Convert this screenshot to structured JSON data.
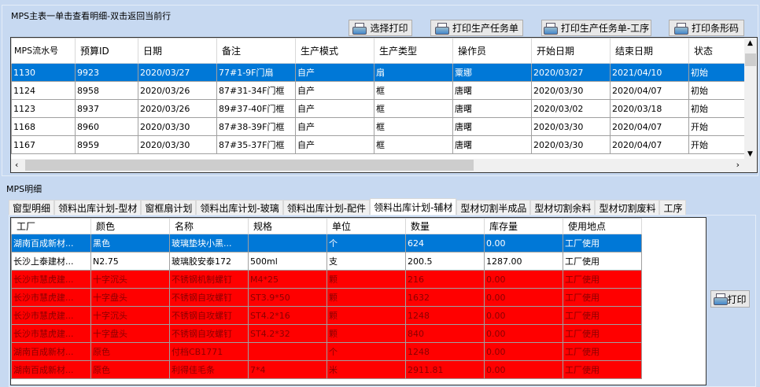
{
  "master": {
    "title": "MPS主表一单击查看明细-双击返回当前行",
    "buttons": [
      "选择打印",
      "打印生产任务单",
      "打印生产任务单-工序",
      "打印条形码"
    ],
    "columns": [
      "MPS流水号",
      "预算ID",
      "日期",
      "备注",
      "生产模式",
      "生产类型",
      "操作员",
      "开始日期",
      "结束日期",
      "状态"
    ],
    "rows": [
      [
        "1130",
        "9923",
        "2020/03/27",
        "77#1-9F门扇",
        "自产",
        "扇",
        "粟娜",
        "2020/03/27",
        "2021/04/10",
        "初始"
      ],
      [
        "1124",
        "8958",
        "2020/03/26",
        "87#31-34F门框",
        "自产",
        "框",
        "唐曙",
        "2020/03/30",
        "2020/04/07",
        "初始"
      ],
      [
        "1123",
        "8937",
        "2020/03/26",
        "89#37-40F门框",
        "自产",
        "框",
        "唐曙",
        "2020/03/02",
        "2020/03/18",
        "初始"
      ],
      [
        "1168",
        "8960",
        "2020/03/30",
        "87#38-39F门框",
        "自产",
        "框",
        "唐曙",
        "2020/03/30",
        "2020/04/07",
        "开始"
      ],
      [
        "1167",
        "8959",
        "2020/03/30",
        "87#35-37F门框",
        "自产",
        "框",
        "唐曙",
        "2020/03/30",
        "2020/04/07",
        "开始"
      ]
    ],
    "selected_row": 0
  },
  "detail": {
    "title": "MPS明细",
    "tabs": [
      "窗型明细",
      "领料出库计划-型材",
      "窗框扇计划",
      "领料出库计划-玻璃",
      "领料出库计划-配件",
      "领料出库计划-辅材",
      "型材切割半成品",
      "型材切割余料",
      "型材切割废料",
      "工序"
    ],
    "active_tab": 5,
    "columns": [
      "工厂",
      "颜色",
      "名称",
      "规格",
      "单位",
      "数量",
      "库存量",
      "使用地点"
    ],
    "rows": [
      [
        "湖南百成新材...",
        "黑色",
        "玻璃垫块小黑...",
        "",
        "个",
        "624",
        "0.00",
        "工厂使用"
      ],
      [
        "长沙上泰建材...",
        "N2.75",
        "玻璃胶安泰172",
        "500ml",
        "支",
        "200.5",
        "1287.00",
        "工厂使用"
      ],
      [
        "长沙市慧虎建...",
        "十字沉头",
        "不锈钢机制螺钉",
        "M4*25",
        "颗",
        "216",
        "0.00",
        "工厂使用"
      ],
      [
        "长沙市慧虎建...",
        "十字盘头",
        "不锈钢自攻螺钉",
        "ST3.9*50",
        "颗",
        "1632",
        "0.00",
        "工厂使用"
      ],
      [
        "长沙市慧虎建...",
        "十字沉头",
        "不锈钢自攻螺钉",
        "ST4.2*16",
        "颗",
        "1248",
        "0.00",
        "工厂使用"
      ],
      [
        "长沙市慧虎建...",
        "十字盘头",
        "不锈钢自攻螺钉",
        "ST4.2*32",
        "颗",
        "840",
        "0.00",
        "工厂使用"
      ],
      [
        "湖南百成新材...",
        "原色",
        "付档CB1771",
        "",
        "个",
        "1248",
        "0.00",
        "工厂使用"
      ],
      [
        "湖南百成新材...",
        "原色",
        "利得佳毛条",
        "7*4",
        "米",
        "2911.81",
        "0.00",
        "工厂使用"
      ]
    ],
    "row_styles": [
      "selected",
      "normal",
      "red",
      "red",
      "red",
      "red",
      "red",
      "red"
    ],
    "print_button": "打印"
  },
  "colors": {
    "selected": "#0078d7",
    "warning_row": "#ff0000",
    "background": "#c7d9f1"
  },
  "icons": {
    "print": "printer-icon"
  }
}
